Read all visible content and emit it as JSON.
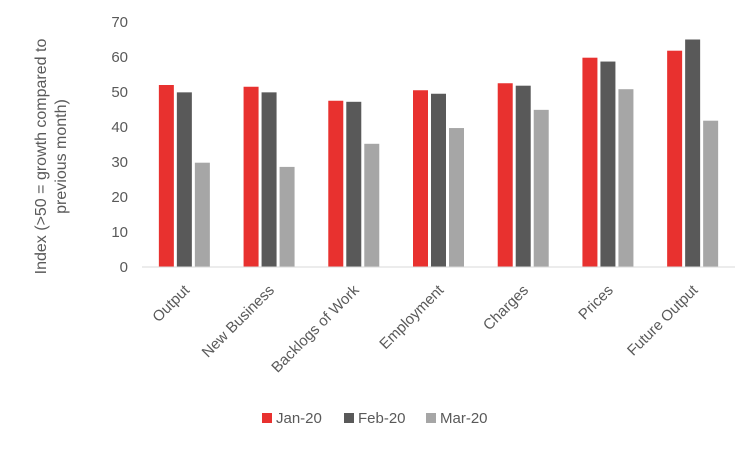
{
  "chart_data": {
    "type": "bar",
    "title": "",
    "xlabel": "",
    "ylabel_lines": [
      "Index (>50 = growth compared to",
      "previous month)"
    ],
    "ylim": [
      0,
      70
    ],
    "yticks": [
      0,
      10,
      20,
      30,
      40,
      50,
      60,
      70
    ],
    "grid": false,
    "legend_position": "bottom",
    "categories": [
      "Output",
      "New Business",
      "Backlogs of Work",
      "Employment",
      "Charges",
      "Prices",
      "Future Output"
    ],
    "series": [
      {
        "name": "Jan-20",
        "color": "#E8312F",
        "values": [
          52.0,
          51.5,
          47.5,
          50.5,
          52.5,
          59.8,
          61.8
        ]
      },
      {
        "name": "Feb-20",
        "color": "#595959",
        "values": [
          49.9,
          49.9,
          47.2,
          49.5,
          51.8,
          58.7,
          65.0
        ]
      },
      {
        "name": "Mar-20",
        "color": "#A6A6A6",
        "values": [
          29.8,
          28.6,
          35.2,
          39.7,
          44.9,
          50.8,
          41.8
        ]
      }
    ]
  }
}
